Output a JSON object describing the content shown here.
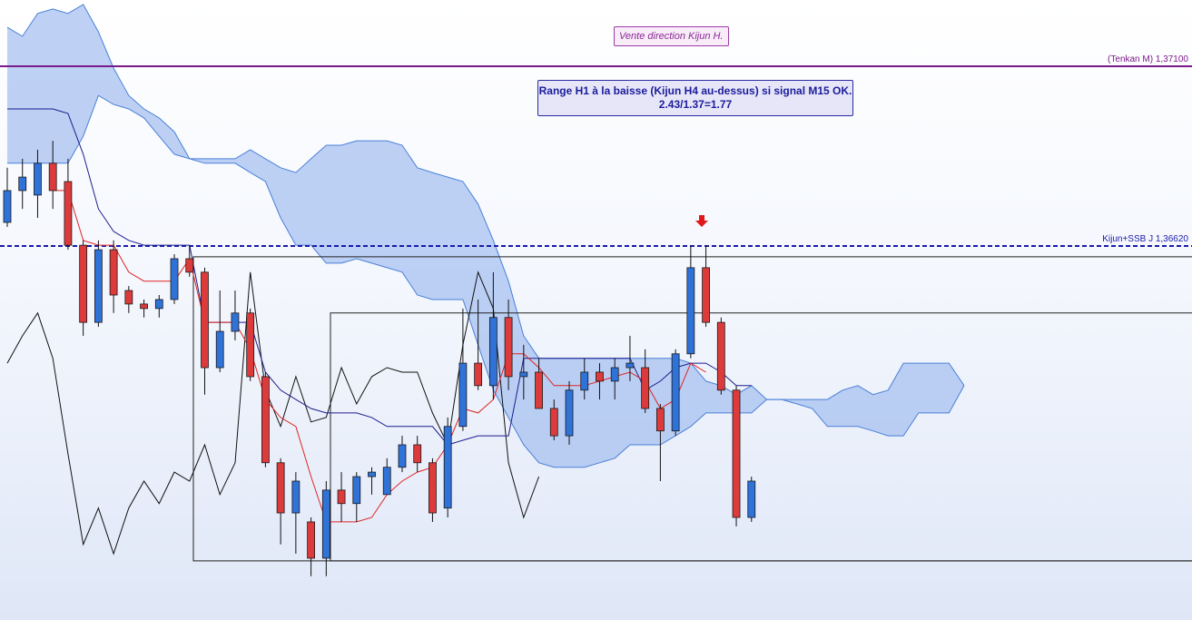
{
  "chart_data": {
    "type": "candlestick",
    "ylim": [
      1.35621,
      1.37277
    ],
    "up_color": "#2f72d8",
    "down_color": "#dd3b3b",
    "candles": [
      [
        1.36683,
        1.36829,
        1.36671,
        1.36768
      ],
      [
        1.36768,
        1.36853,
        1.36719,
        1.36804
      ],
      [
        1.36756,
        1.36877,
        1.36695,
        1.36841
      ],
      [
        1.36841,
        1.36901,
        1.36719,
        1.36768
      ],
      [
        1.36792,
        1.36853,
        1.3661,
        1.36622
      ],
      [
        1.36622,
        1.36635,
        1.3638,
        1.36416
      ],
      [
        1.36416,
        1.36635,
        1.36404,
        1.3661
      ],
      [
        1.3661,
        1.36635,
        1.36441,
        1.36489
      ],
      [
        1.36501,
        1.36513,
        1.36441,
        1.36465
      ],
      [
        1.36465,
        1.36477,
        1.36429,
        1.36453
      ],
      [
        1.36453,
        1.36489,
        1.36429,
        1.36477
      ],
      [
        1.36477,
        1.36598,
        1.36465,
        1.36586
      ],
      [
        1.36586,
        1.36622,
        1.36538,
        1.3655
      ],
      [
        1.3655,
        1.36562,
        1.36223,
        1.36295
      ],
      [
        1.36295,
        1.36501,
        1.36283,
        1.36392
      ],
      [
        1.36392,
        1.36501,
        1.36368,
        1.36441
      ],
      [
        1.36441,
        1.36453,
        1.36259,
        1.36271
      ],
      [
        1.36271,
        1.36283,
        1.36029,
        1.36041
      ],
      [
        1.36041,
        1.36053,
        1.35823,
        1.35907
      ],
      [
        1.35907,
        1.36016,
        1.35798,
        1.35992
      ],
      [
        1.35883,
        1.35895,
        1.35738,
        1.35786
      ],
      [
        1.35786,
        1.35992,
        1.35738,
        1.35968
      ],
      [
        1.35968,
        1.36016,
        1.35883,
        1.35932
      ],
      [
        1.35932,
        1.36016,
        1.35883,
        1.36004
      ],
      [
        1.36004,
        1.36029,
        1.35956,
        1.36016
      ],
      [
        1.35956,
        1.36053,
        1.35956,
        1.36029
      ],
      [
        1.36029,
        1.36113,
        1.36016,
        1.36089
      ],
      [
        1.36089,
        1.36113,
        1.36016,
        1.36041
      ],
      [
        1.36041,
        1.36053,
        1.35883,
        1.35907
      ],
      [
        1.3592,
        1.36162,
        1.35895,
        1.36138
      ],
      [
        1.36138,
        1.36453,
        1.36126,
        1.36307
      ],
      [
        1.36307,
        1.36477,
        1.36235,
        1.36247
      ],
      [
        1.36247,
        1.3655,
        1.3621,
        1.36429
      ],
      [
        1.36429,
        1.36477,
        1.36235,
        1.36271
      ],
      [
        1.36271,
        1.36356,
        1.3621,
        1.36283
      ],
      [
        1.36283,
        1.3632,
        1.36186,
        1.36186
      ],
      [
        1.36186,
        1.3621,
        1.36101,
        1.36113
      ],
      [
        1.36113,
        1.36259,
        1.36089,
        1.36235
      ],
      [
        1.36235,
        1.3632,
        1.3621,
        1.36283
      ],
      [
        1.36283,
        1.36307,
        1.3621,
        1.36259
      ],
      [
        1.36259,
        1.3632,
        1.3621,
        1.36295
      ],
      [
        1.36295,
        1.3638,
        1.36259,
        1.36307
      ],
      [
        1.36295,
        1.36344,
        1.36174,
        1.36186
      ],
      [
        1.36186,
        1.36198,
        1.35992,
        1.36126
      ],
      [
        1.36126,
        1.36344,
        1.36113,
        1.36332
      ],
      [
        1.36332,
        1.36622,
        1.3632,
        1.36562
      ],
      [
        1.36562,
        1.36622,
        1.36404,
        1.36416
      ],
      [
        1.36416,
        1.36429,
        1.36223,
        1.36235
      ],
      [
        1.36235,
        1.36247,
        1.35871,
        1.35895
      ],
      [
        1.35895,
        1.36004,
        1.35883,
        1.35992
      ]
    ],
    "tenkan": {
      "color": "#e02424",
      "values": [
        null,
        null,
        null,
        1.36768,
        1.36768,
        1.36635,
        1.36622,
        1.36622,
        1.3655,
        1.36526,
        1.36526,
        1.36526,
        1.36586,
        1.36416,
        1.36416,
        1.36416,
        1.36344,
        1.3621,
        1.36162,
        1.36138,
        1.36004,
        1.35883,
        1.35883,
        1.35883,
        1.35895,
        1.35956,
        1.35992,
        1.36016,
        1.36029,
        1.36089,
        1.36186,
        1.36174,
        1.3621,
        1.36332,
        1.36332,
        1.36295,
        1.36247,
        1.36247,
        1.36247,
        1.36259,
        1.36271,
        1.36283,
        1.36259,
        1.36186,
        1.3621,
        1.36307,
        1.36283,
        null,
        null,
        null,
        null,
        null,
        null,
        null,
        null,
        null,
        null,
        null,
        null,
        null,
        null,
        null,
        null,
        null
      ]
    },
    "kijun": {
      "color": "#1c1c8c",
      "values": [
        1.36986,
        1.36986,
        1.36986,
        1.36986,
        1.36974,
        1.36865,
        1.36719,
        1.36659,
        1.36635,
        1.36622,
        1.36622,
        1.36622,
        1.36622,
        1.36416,
        1.36416,
        1.36416,
        1.36416,
        1.36283,
        1.36235,
        1.3621,
        1.36186,
        1.36174,
        1.36174,
        1.36174,
        1.36162,
        1.36138,
        1.36138,
        1.36138,
        1.36138,
        1.36089,
        1.36101,
        1.36113,
        1.36113,
        1.36113,
        1.3632,
        1.3632,
        1.3632,
        1.3632,
        1.3632,
        1.3632,
        1.3632,
        1.3632,
        1.36235,
        1.36259,
        1.36295,
        1.36307,
        1.36307,
        1.36283,
        1.36247,
        1.36247,
        null,
        null,
        null,
        null,
        null,
        null,
        null,
        null,
        null,
        null,
        null,
        null,
        null,
        null
      ]
    },
    "chikou": {
      "color": "#111111",
      "values": [
        1.36307,
        1.3638,
        1.36441,
        1.3632,
        1.36065,
        1.35823,
        1.3592,
        1.35798,
        1.3592,
        1.35992,
        1.35932,
        1.36016,
        1.35992,
        1.36089,
        1.35956,
        1.36041,
        1.3655,
        1.36235,
        1.36138,
        1.36271,
        1.3615,
        1.36162,
        1.36295,
        1.36198,
        1.36271,
        1.36295,
        1.36283,
        1.36283,
        1.36174,
        1.36089,
        1.36356,
        1.3655,
        1.36453,
        1.36041,
        1.35895,
        1.36004,
        null,
        null,
        null,
        null,
        null,
        null,
        null,
        null,
        null,
        null,
        null,
        null,
        null,
        null,
        null,
        null,
        null,
        null,
        null,
        null,
        null,
        null,
        null,
        null,
        null,
        null,
        null,
        null
      ]
    },
    "cloud": {
      "color": "#a8c2f0",
      "edge_color": "#4a80d8",
      "upper": [
        1.37204,
        1.3718,
        1.37241,
        1.37253,
        1.37241,
        1.37265,
        1.37192,
        1.37095,
        1.37022,
        1.36986,
        1.36962,
        1.36925,
        1.36853,
        1.36853,
        1.36853,
        1.36853,
        1.36877,
        1.36853,
        1.36829,
        1.36816,
        1.36853,
        1.36889,
        1.36889,
        1.36901,
        1.36901,
        1.36901,
        1.36889,
        1.36829,
        1.36816,
        1.36804,
        1.36792,
        1.36732,
        1.36635,
        1.36526,
        1.3638,
        1.3632,
        1.3632,
        1.3632,
        1.3632,
        1.3632,
        1.3632,
        1.3632,
        1.3632,
        1.3632,
        1.3632,
        1.36307,
        1.36259,
        1.36247,
        1.36223,
        1.36247,
        1.3621,
        1.3621,
        1.3621,
        1.3621,
        1.3621,
        1.36235,
        1.36247,
        1.36223,
        1.36235,
        1.36307,
        1.36307,
        1.36307,
        1.36307,
        1.36247
      ],
      "lower": [
        1.36841,
        1.36841,
        1.36841,
        1.36841,
        1.36841,
        1.36913,
        1.37022,
        1.36998,
        1.36986,
        1.36962,
        1.36913,
        1.36865,
        1.36853,
        1.36841,
        1.36841,
        1.36841,
        1.36816,
        1.36792,
        1.36695,
        1.36622,
        1.36622,
        1.36574,
        1.36574,
        1.36586,
        1.36574,
        1.36562,
        1.3655,
        1.36489,
        1.36477,
        1.36477,
        1.36477,
        1.36356,
        1.36235,
        1.36162,
        1.36089,
        1.36041,
        1.36029,
        1.36029,
        1.36029,
        1.36041,
        1.36053,
        1.36089,
        1.36089,
        1.36089,
        1.36113,
        1.36138,
        1.36174,
        1.36174,
        1.36174,
        1.36174,
        1.3621,
        1.3621,
        1.36198,
        1.36186,
        1.36138,
        1.36138,
        1.36138,
        1.36126,
        1.36113,
        1.36113,
        1.36174,
        1.36174,
        1.36174,
        1.36247
      ]
    },
    "levels": [
      {
        "value": 1.371,
        "label": "(Tenkan M) 1,37100",
        "color": "#7a1a8a",
        "style": "solid"
      },
      {
        "value": 1.3662,
        "label": "Kijun+SSB J 1,36620",
        "color": "#1a1aa8",
        "style": "dashed"
      }
    ],
    "ranges": [
      {
        "top": 1.36591,
        "bottom": 1.35779
      },
      {
        "top": 1.36441,
        "bottom": 1.35779
      }
    ],
    "annotations": [
      "Vente direction Kijun H.",
      "Range H1 à la baisse (Kijun H4 au-dessus) si signal M15 OK.",
      "2.43/1.37=1.77"
    ]
  }
}
